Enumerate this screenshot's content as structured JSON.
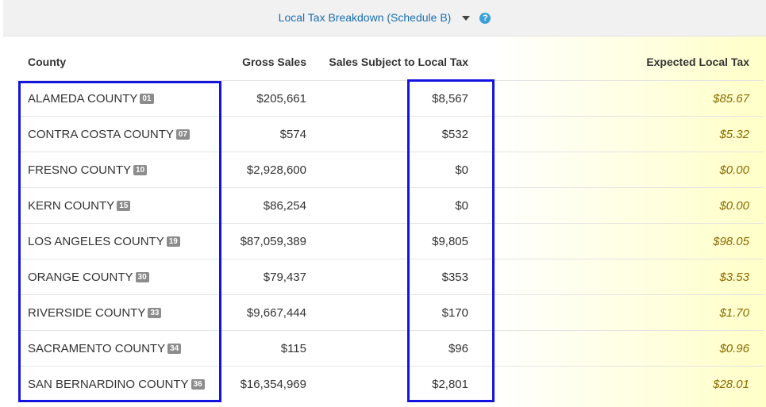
{
  "header": {
    "title": "Local Tax Breakdown (Schedule B)",
    "help_icon": "?"
  },
  "table": {
    "columns": [
      "County",
      "Gross Sales",
      "Sales Subject to Local Tax",
      "Expected Local Tax"
    ],
    "rows": [
      {
        "county": "ALAMEDA COUNTY",
        "code": "01",
        "gross_sales": "$205,661",
        "subject": "$8,567",
        "expected": "$85.67"
      },
      {
        "county": "CONTRA COSTA COUNTY",
        "code": "07",
        "gross_sales": "$574",
        "subject": "$532",
        "expected": "$5.32"
      },
      {
        "county": "FRESNO COUNTY",
        "code": "10",
        "gross_sales": "$2,928,600",
        "subject": "$0",
        "expected": "$0.00"
      },
      {
        "county": "KERN COUNTY",
        "code": "15",
        "gross_sales": "$86,254",
        "subject": "$0",
        "expected": "$0.00"
      },
      {
        "county": "LOS ANGELES COUNTY",
        "code": "19",
        "gross_sales": "$87,059,389",
        "subject": "$9,805",
        "expected": "$98.05"
      },
      {
        "county": "ORANGE COUNTY",
        "code": "30",
        "gross_sales": "$79,437",
        "subject": "$353",
        "expected": "$3.53"
      },
      {
        "county": "RIVERSIDE COUNTY",
        "code": "33",
        "gross_sales": "$9,667,444",
        "subject": "$170",
        "expected": "$1.70"
      },
      {
        "county": "SACRAMENTO COUNTY",
        "code": "34",
        "gross_sales": "$115",
        "subject": "$96",
        "expected": "$0.96"
      },
      {
        "county": "SAN BERNARDINO COUNTY",
        "code": "36",
        "gross_sales": "$16,354,969",
        "subject": "$2,801",
        "expected": "$28.01"
      }
    ]
  }
}
